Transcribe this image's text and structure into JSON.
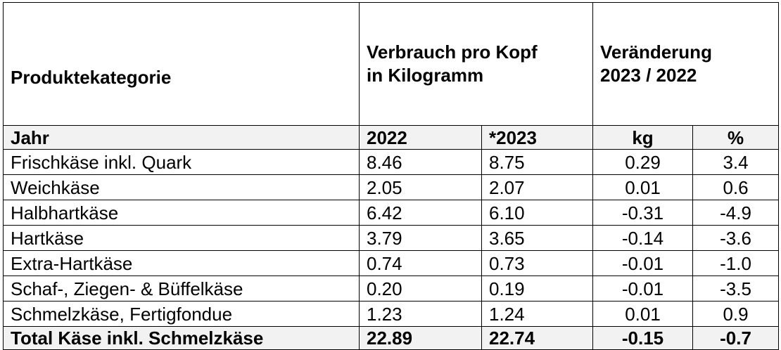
{
  "header": {
    "category_label": "Produktekategorie",
    "consumption_label_line1": "Verbrauch pro Kopf",
    "consumption_label_line2": "in Kilogramm",
    "change_label_line1": "Veränderung",
    "change_label_line2": "2023 / 2022"
  },
  "subheader": {
    "year_label": "Jahr",
    "col_2022": "2022",
    "col_2023": "*2023",
    "col_kg": "kg",
    "col_pct": "%"
  },
  "rows": [
    {
      "category": "Frischkäse inkl. Quark",
      "v2022": "8.46",
      "v2023": "8.75",
      "kg": "0.29",
      "pct": "3.4"
    },
    {
      "category": "Weichkäse",
      "v2022": "2.05",
      "v2023": "2.07",
      "kg": "0.01",
      "pct": "0.6"
    },
    {
      "category": "Halbhartkäse",
      "v2022": "6.42",
      "v2023": "6.10",
      "kg": "-0.31",
      "pct": "-4.9"
    },
    {
      "category": "Hartkäse",
      "v2022": "3.79",
      "v2023": "3.65",
      "kg": "-0.14",
      "pct": "-3.6"
    },
    {
      "category": "Extra-Hartkäse",
      "v2022": "0.74",
      "v2023": "0.73",
      "kg": "-0.01",
      "pct": "-1.0"
    },
    {
      "category": "Schaf-, Ziegen- & Büffelkäse",
      "v2022": "0.20",
      "v2023": "0.19",
      "kg": "-0.01",
      "pct": "-3.5"
    },
    {
      "category": "Schmelzkäse, Fertigfondue",
      "v2022": "1.23",
      "v2023": "1.24",
      "kg": "0.01",
      "pct": "0.9"
    }
  ],
  "total": {
    "category": "Total Käse inkl. Schmelzkäse",
    "v2022": "22.89",
    "v2023": "22.74",
    "kg": "-0.15",
    "pct": "-0.7"
  },
  "colors": {
    "border": "#000000",
    "shaded_row": "#f2f2f2"
  }
}
